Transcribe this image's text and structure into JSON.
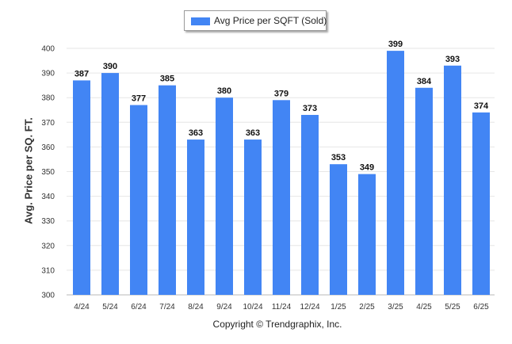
{
  "chart_data": {
    "type": "bar",
    "title": "",
    "legend": [
      "Avg Price per SQFT (Sold)"
    ],
    "legend_position": "top-center",
    "ylabel": "Avg. Price per SQ. FT.",
    "xlabel": "",
    "ylim": [
      300,
      400
    ],
    "yticks": [
      300,
      310,
      320,
      330,
      340,
      350,
      360,
      370,
      380,
      390,
      400
    ],
    "grid": true,
    "categories": [
      "4/24",
      "5/24",
      "6/24",
      "7/24",
      "8/24",
      "9/24",
      "10/24",
      "11/24",
      "12/24",
      "1/25",
      "2/25",
      "3/25",
      "4/25",
      "5/25",
      "6/25"
    ],
    "series": [
      {
        "name": "Avg Price per SQFT (Sold)",
        "values": [
          387,
          390,
          377,
          385,
          363,
          380,
          363,
          379,
          373,
          353,
          349,
          399,
          384,
          393,
          374
        ]
      }
    ],
    "bar_color": "#4285f4"
  },
  "footer": {
    "copyright": "Copyright © Trendgraphix, Inc."
  }
}
